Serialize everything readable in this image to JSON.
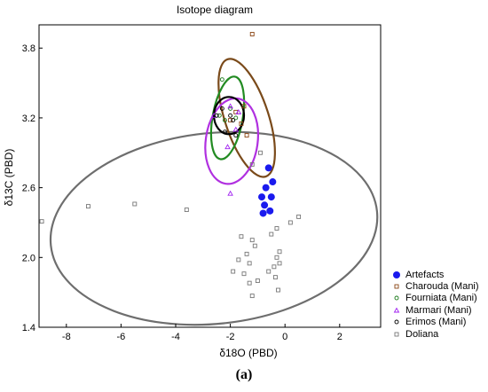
{
  "chart_data": {
    "type": "scatter",
    "title": "Isotope diagram",
    "xlabel": "δ18O (PBD)",
    "ylabel": "δ13C (PBD)",
    "xlim": [
      -9,
      3.5
    ],
    "ylim": [
      1.4,
      4.0
    ],
    "x_ticks": [
      -8,
      -6,
      -4,
      -2,
      0,
      2
    ],
    "y_ticks": [
      1.4,
      2.0,
      2.6,
      3.2,
      3.8
    ],
    "y_tick_labels": [
      "1.4",
      "2.0",
      "2.6",
      "3.2",
      "3.8"
    ],
    "x_tick_labels": [
      "-8",
      "-6",
      "-4",
      "-2",
      "0",
      "2"
    ],
    "grid": false,
    "legend_position": "bottom-right",
    "series": [
      {
        "name": "Artefacts",
        "color": "#1a1aee",
        "marker": "filled-circle",
        "points": [
          [
            -0.6,
            2.77
          ],
          [
            -0.45,
            2.65
          ],
          [
            -0.7,
            2.6
          ],
          [
            -0.5,
            2.52
          ],
          [
            -0.85,
            2.52
          ],
          [
            -0.75,
            2.45
          ],
          [
            -0.55,
            2.4
          ],
          [
            -0.8,
            2.38
          ]
        ]
      },
      {
        "name": "Charouda (Mani)",
        "color": "#8b4513",
        "marker": "open-square",
        "points": [
          [
            -1.2,
            3.92
          ],
          [
            -1.5,
            3.3
          ],
          [
            -1.8,
            3.25
          ],
          [
            -1.6,
            3.15
          ],
          [
            -2.0,
            3.18
          ],
          [
            -1.4,
            3.05
          ]
        ]
      },
      {
        "name": "Fourniata (Mani)",
        "color": "#1a7a1a",
        "marker": "open-circle",
        "points": [
          [
            -2.3,
            3.53
          ],
          [
            -2.0,
            3.28
          ],
          [
            -2.2,
            3.18
          ],
          [
            -1.8,
            3.2
          ],
          [
            -2.4,
            3.22
          ]
        ]
      },
      {
        "name": "Marmari (Mani)",
        "color": "#a020f0",
        "marker": "open-triangle",
        "points": [
          [
            -2.0,
            3.3
          ],
          [
            -1.8,
            3.1
          ],
          [
            -2.1,
            2.95
          ],
          [
            -2.0,
            2.55
          ],
          [
            -1.7,
            3.25
          ],
          [
            -2.6,
            3.22
          ]
        ]
      },
      {
        "name": "Erimos (Mani)",
        "color": "#000000",
        "marker": "open-circle",
        "points": [
          [
            -2.3,
            3.28
          ],
          [
            -2.0,
            3.22
          ],
          [
            -1.9,
            3.18
          ],
          [
            -2.2,
            3.08
          ],
          [
            -1.8,
            3.05
          ],
          [
            -2.5,
            3.22
          ]
        ]
      },
      {
        "name": "Doliana",
        "color": "#777777",
        "marker": "open-square",
        "points": [
          [
            -8.9,
            2.31
          ],
          [
            -7.2,
            2.44
          ],
          [
            -5.5,
            2.46
          ],
          [
            -3.6,
            2.41
          ],
          [
            -1.6,
            2.18
          ],
          [
            -1.2,
            2.15
          ],
          [
            -1.1,
            2.1
          ],
          [
            -1.4,
            2.03
          ],
          [
            -1.7,
            1.98
          ],
          [
            -1.3,
            1.95
          ],
          [
            -1.9,
            1.88
          ],
          [
            -1.5,
            1.86
          ],
          [
            -1.0,
            1.8
          ],
          [
            -1.3,
            1.78
          ],
          [
            -0.2,
            2.05
          ],
          [
            -0.3,
            2.0
          ],
          [
            -0.2,
            1.95
          ],
          [
            -0.4,
            1.92
          ],
          [
            -0.6,
            1.88
          ],
          [
            -0.35,
            1.83
          ],
          [
            -0.25,
            1.72
          ],
          [
            -1.2,
            1.67
          ],
          [
            -0.5,
            2.2
          ],
          [
            -0.3,
            2.25
          ],
          [
            0.2,
            2.3
          ],
          [
            0.5,
            2.35
          ],
          [
            -0.9,
            2.9
          ],
          [
            -1.2,
            2.8
          ]
        ]
      }
    ],
    "ellipses": [
      {
        "color": "#6e6e6e",
        "cx": -2.6,
        "cy": 2.25,
        "rx": 6.0,
        "ry": 0.82,
        "angle": 6
      },
      {
        "color": "#7a4a1a",
        "cx": -1.4,
        "cy": 3.2,
        "rx": 0.8,
        "ry": 0.53,
        "angle": 18
      },
      {
        "color": "#228b22",
        "cx": -2.1,
        "cy": 3.2,
        "rx": 0.55,
        "ry": 0.36,
        "angle": -10
      },
      {
        "color": "#b030e0",
        "cx": -1.95,
        "cy": 3.0,
        "rx": 0.95,
        "ry": 0.37,
        "angle": -8
      },
      {
        "color": "#000000",
        "cx": -2.05,
        "cy": 3.22,
        "rx": 0.55,
        "ry": 0.16,
        "angle": 0
      }
    ]
  },
  "caption": "(a)"
}
